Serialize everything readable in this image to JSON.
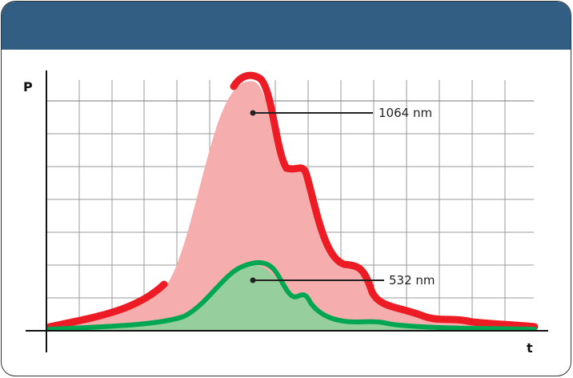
{
  "axes": {
    "y_label": "P",
    "x_label": "t"
  },
  "series": [
    {
      "name": "1064 nm",
      "line_color": "#ED1C24",
      "fill_color": "#F5ADAE"
    },
    {
      "name": "532 nm",
      "line_color": "#00A651",
      "fill_color": "#96CE9E"
    }
  ],
  "header_color": "#335E84"
}
